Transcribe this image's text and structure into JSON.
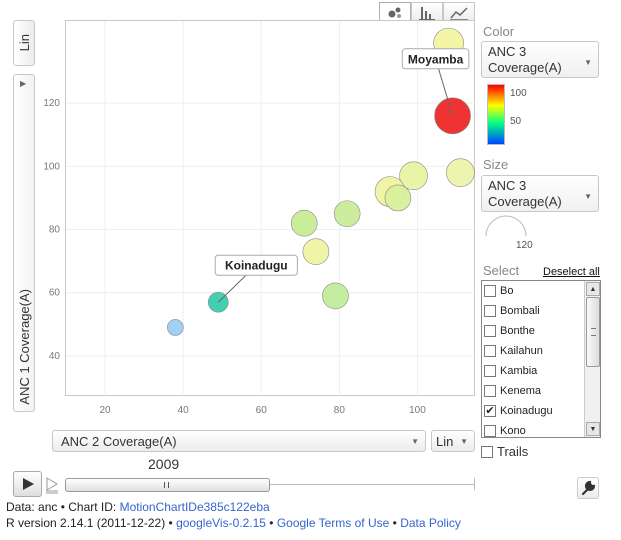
{
  "tabs": [
    {
      "icon": "bubble-chart-icon",
      "active": true
    },
    {
      "icon": "bar-chart-icon",
      "active": false
    },
    {
      "icon": "line-chart-icon",
      "active": false
    }
  ],
  "y_axis": {
    "scale_label": "Lin",
    "variable": "ANC 1 Coverage(A)"
  },
  "x_axis": {
    "variable": "ANC 2 Coverage(A)",
    "scale_label": "Lin"
  },
  "color_panel": {
    "label": "Color",
    "variable": "ANC 3 Coverage(A)",
    "legend_high": "100",
    "legend_low": "50"
  },
  "size_panel": {
    "label": "Size",
    "variable": "ANC 3 Coverage(A)",
    "legend_value": "120"
  },
  "select_panel": {
    "label": "Select",
    "deselect_all": "Deselect all",
    "items": [
      {
        "name": "Bo",
        "checked": false
      },
      {
        "name": "Bombali",
        "checked": false
      },
      {
        "name": "Bonthe",
        "checked": false
      },
      {
        "name": "Kailahun",
        "checked": false
      },
      {
        "name": "Kambia",
        "checked": false
      },
      {
        "name": "Kenema",
        "checked": false
      },
      {
        "name": "Koinadugu",
        "checked": true
      },
      {
        "name": "Kono",
        "checked": false
      }
    ]
  },
  "trails_label": "Trails",
  "playback": {
    "year": "2009",
    "position": 0.5
  },
  "footer": {
    "line1_prefix": "Data: anc • Chart ID: ",
    "chart_id": "MotionChartIDe385c122eba",
    "line2_prefix": "R version 2.14.1 (2011-12-22) • ",
    "googlevis": "googleVis-0.2.15",
    "sep": " • ",
    "terms": "Google Terms of Use",
    "policy": "Data Policy"
  },
  "chart_data": {
    "type": "scatter",
    "xlabel": "ANC 2 Coverage(A)",
    "ylabel": "ANC 1 Coverage(A)",
    "xlim": [
      10,
      115
    ],
    "ylim": [
      27,
      146
    ],
    "x_ticks": [
      20,
      40,
      60,
      80,
      100
    ],
    "y_ticks": [
      40,
      60,
      80,
      100,
      120
    ],
    "points": [
      {
        "x": 108,
        "y": 139,
        "r": 15,
        "color": "#f4f4a0"
      },
      {
        "x": 109,
        "y": 116,
        "r": 18,
        "color": "#ee2222",
        "label": "Moyamba"
      },
      {
        "x": 111,
        "y": 98,
        "r": 14,
        "color": "#ecf3a8"
      },
      {
        "x": 99,
        "y": 97,
        "r": 14,
        "color": "#e8f3a0"
      },
      {
        "x": 93,
        "y": 92,
        "r": 15,
        "color": "#eef3a0"
      },
      {
        "x": 95,
        "y": 90,
        "r": 13,
        "color": "#d8f09a"
      },
      {
        "x": 82,
        "y": 85,
        "r": 13,
        "color": "#c9ec96"
      },
      {
        "x": 71,
        "y": 82,
        "r": 13,
        "color": "#c6ec90"
      },
      {
        "x": 74,
        "y": 73,
        "r": 13,
        "color": "#eef3a0"
      },
      {
        "x": 79,
        "y": 59,
        "r": 13,
        "color": "#c0ec98"
      },
      {
        "x": 49,
        "y": 57,
        "r": 10,
        "color": "#33ccaa",
        "label": "Koinadugu"
      },
      {
        "x": 38,
        "y": 49,
        "r": 8,
        "color": "#99ccf2"
      }
    ]
  }
}
